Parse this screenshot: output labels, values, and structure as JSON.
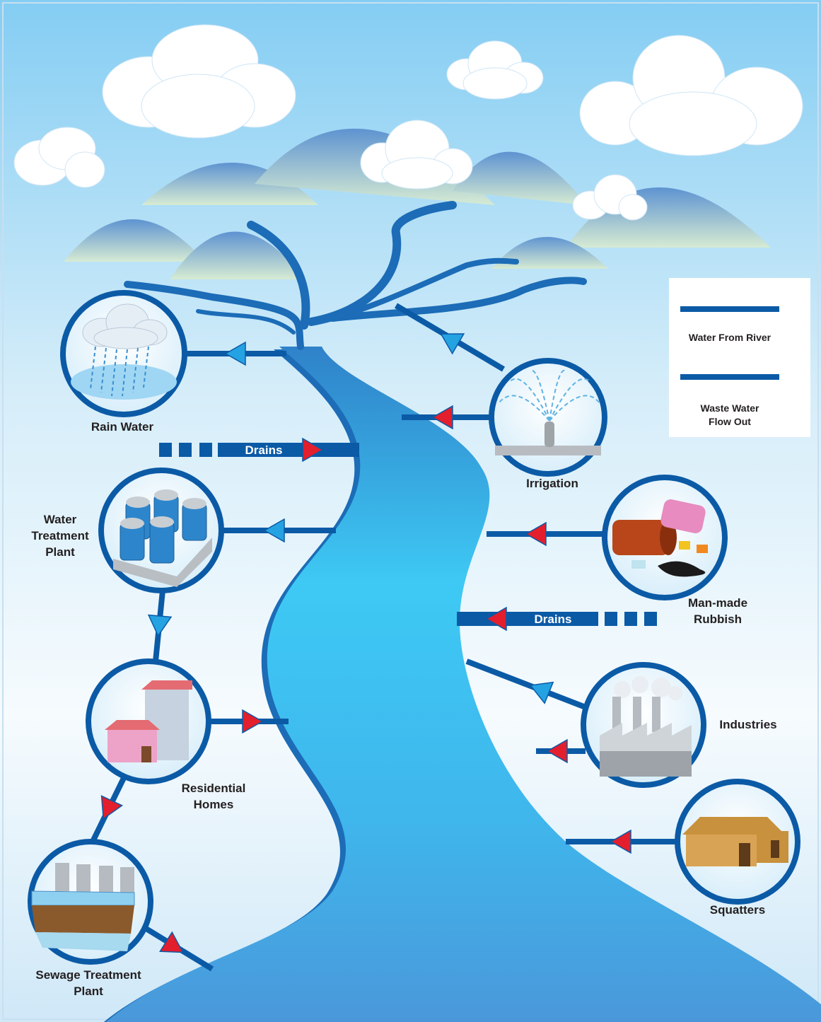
{
  "legend": {
    "items": [
      {
        "label_lines": [
          "Water From River"
        ]
      },
      {
        "label_lines": [
          "Waste Water",
          "Flow Out"
        ]
      }
    ]
  },
  "drains": [
    "Drains",
    "Drains"
  ],
  "nodes": [
    {
      "label_lines": [
        "Rain Water"
      ]
    },
    {
      "label_lines": [
        "Irrigation"
      ]
    },
    {
      "label_lines": [
        "Water",
        "Treatment",
        "Plant"
      ]
    },
    {
      "label_lines": [
        "Man-made",
        "Rubbish"
      ]
    },
    {
      "label_lines": [
        "Residential",
        "Homes"
      ]
    },
    {
      "label_lines": [
        "Industries"
      ]
    },
    {
      "label_lines": [
        "Sewage Treatment",
        "Plant"
      ]
    },
    {
      "label_lines": [
        "Squatters"
      ]
    }
  ]
}
